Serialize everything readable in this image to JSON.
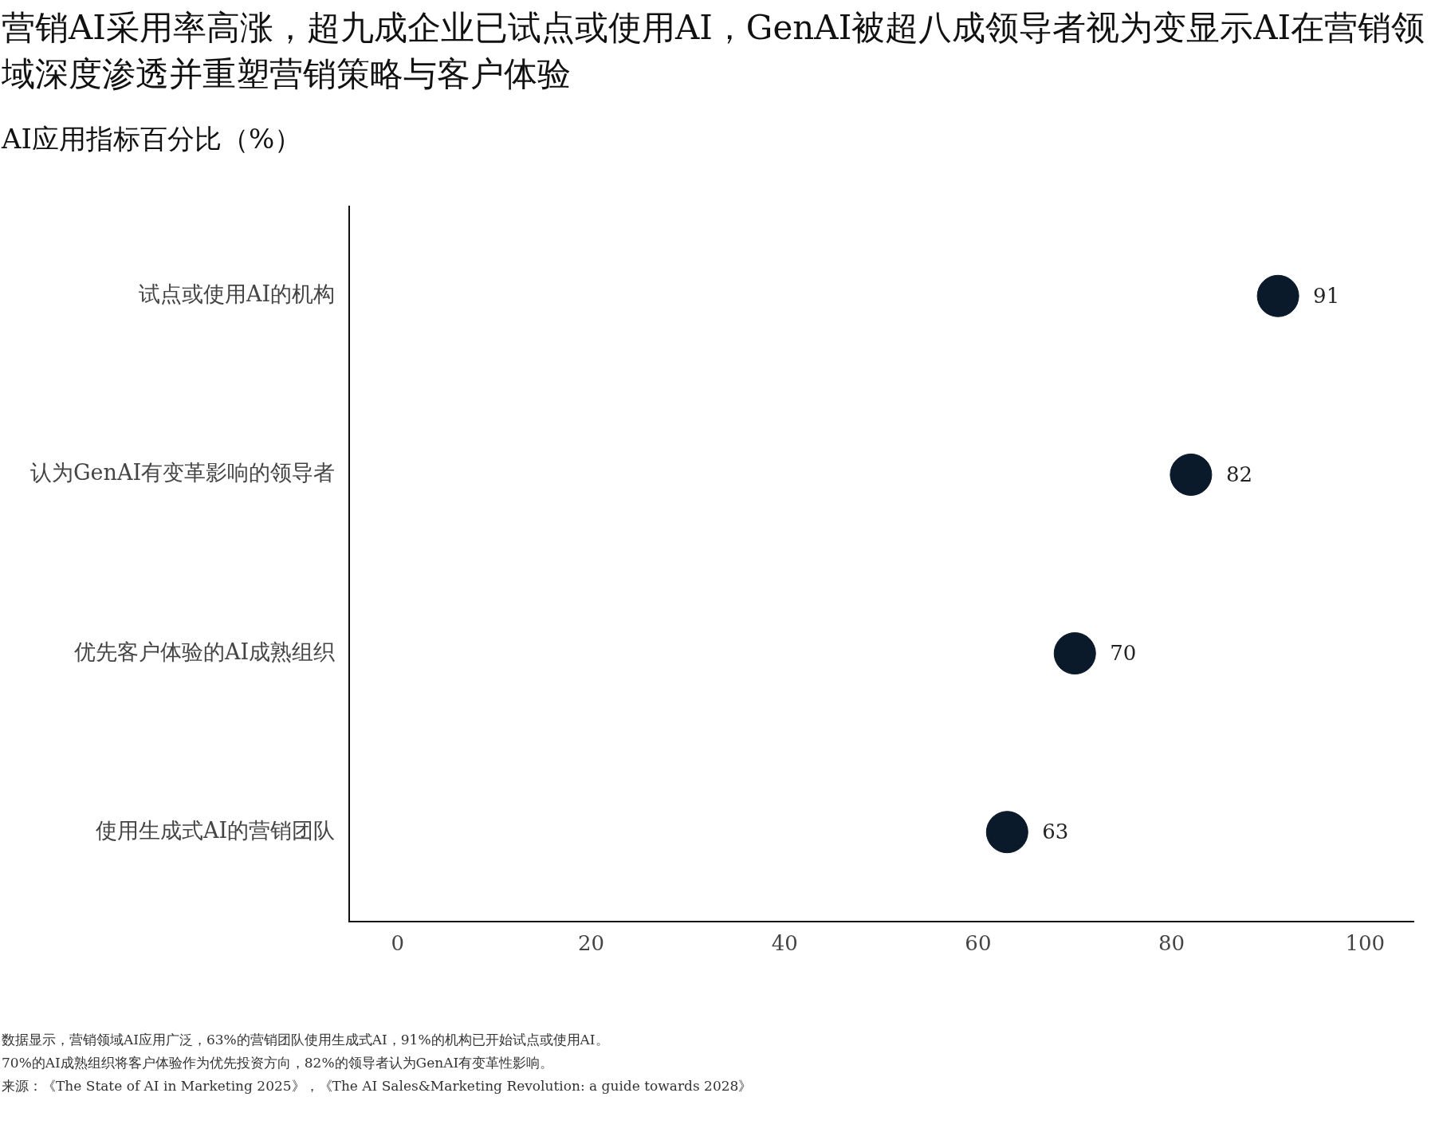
{
  "chart_data": {
    "type": "scatter",
    "orientation": "horizontal",
    "title": "营销AI采用率高涨，超九成企业已试点或使用AI，GenAI被超八成领导者视为变显示AI在营销领域深度渗透并重塑营销策略与客户体验",
    "subtitle": "AI应用指标百分比（%）",
    "categories": [
      "试点或使用AI的机构",
      "认为GenAI有变革影响的领导者",
      "优先客户体验的AI成熟组织",
      "使用生成式AI的营销团队"
    ],
    "series": [
      {
        "color": "#0b1a2a",
        "values": [
          91,
          82,
          70,
          63
        ]
      }
    ],
    "xlim": [
      -5,
      105
    ],
    "xticks": [
      0,
      20,
      40,
      60,
      80,
      100
    ],
    "marker": "circle",
    "data_labels": true,
    "grid": false,
    "legend": false,
    "annotations": [
      "数据显示，营销领域AI应用广泛，63%的营销团队使用生成式AI，91%的机构已开始试点或使用AI。",
      "70%的AI成熟组织将客户体验作为优先投资方向，82%的领导者认为GenAI有变革性影响。",
      "来源：《The State of AI in Marketing 2025》，《The AI Sales&Marketing Revolution: a guide towards 2028》"
    ]
  }
}
